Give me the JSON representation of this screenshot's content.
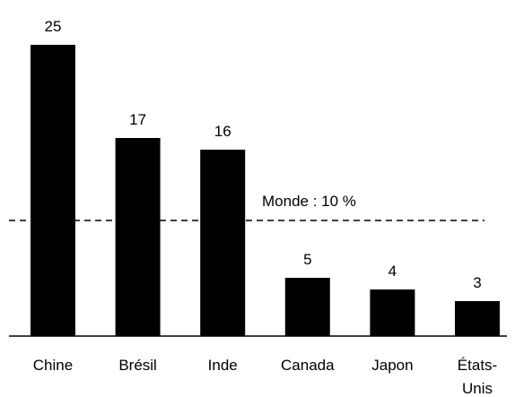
{
  "chart_data": {
    "type": "bar",
    "title": "",
    "xlabel": "",
    "ylabel": "",
    "categories": [
      "Chine",
      "Brésil",
      "Inde",
      "Canada",
      "Japon",
      "États-Unis"
    ],
    "category_lines": [
      [
        "Chine"
      ],
      [
        "Brésil"
      ],
      [
        "Inde"
      ],
      [
        "Canada"
      ],
      [
        "Japon"
      ],
      [
        "États-",
        "Unis"
      ]
    ],
    "values": [
      25,
      17,
      16,
      5,
      4,
      3
    ],
    "data_labels": [
      "25",
      "17",
      "16",
      "5",
      "4",
      "3"
    ],
    "ylim": [
      0,
      25
    ],
    "y_axis_visible": false,
    "grid": false,
    "legend": "none",
    "reference_line": {
      "value": 10,
      "label": "Monde : 10 %",
      "style": "dashed"
    },
    "colors": {
      "bar": "#000000",
      "axis": "#000000",
      "reference_line": "#000000",
      "background": "#ffffff"
    }
  }
}
